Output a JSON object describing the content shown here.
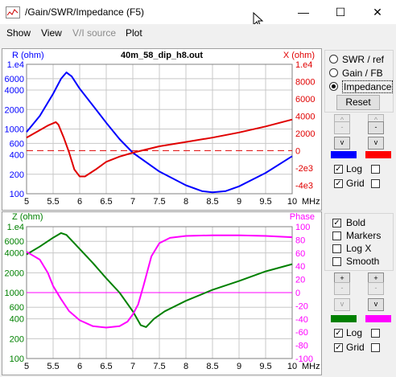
{
  "window": {
    "title": "/Gain/SWR/Impedance (F5)",
    "minimize": "—",
    "maximize": "☐",
    "close": "✕"
  },
  "menu": {
    "show": "Show",
    "view": "View",
    "vi_source": "V/I source",
    "plot": "Plot"
  },
  "top_plot": {
    "title": "40m_58_dip_h8.out",
    "left_axis_label": "R (ohm)",
    "right_axis_label": "X (ohm)",
    "left_ticks": [
      "1.e4",
      "6000",
      "4000",
      "2000",
      "1000",
      "600",
      "400",
      "200",
      "100"
    ],
    "right_ticks": [
      "1.e4",
      "8000",
      "6000",
      "4000",
      "2000",
      "0",
      "-2e3",
      "-4e3"
    ],
    "x_ticks": [
      "5",
      "5.5",
      "6",
      "6.5",
      "7",
      "7.5",
      "8",
      "8.5",
      "9",
      "9.5",
      "10",
      "MHz"
    ],
    "colors": {
      "left": "#0000ff",
      "right": "#e00000",
      "grid": "#c8c8c8"
    }
  },
  "bottom_plot": {
    "left_axis_label": "Z (ohm)",
    "right_axis_label": "Phase",
    "left_ticks": [
      "1.e4",
      "6000",
      "4000",
      "2000",
      "1000",
      "600",
      "400",
      "200",
      "100"
    ],
    "right_ticks": [
      "100",
      "80",
      "60",
      "40",
      "20",
      "0",
      "-20",
      "-40",
      "-60",
      "-80",
      "-100"
    ],
    "x_ticks": [
      "5",
      "5.5",
      "6",
      "6.5",
      "7",
      "7.5",
      "8",
      "8.5",
      "9",
      "9.5",
      "10",
      "MHz"
    ],
    "colors": {
      "left": "#008000",
      "right": "#ff00ff",
      "grid": "#c8c8c8"
    }
  },
  "chart_data": [
    {
      "type": "line",
      "title": "40m_58_dip_h8.out",
      "xlabel": "MHz",
      "x_range": [
        5,
        10
      ],
      "series": [
        {
          "name": "R (ohm)",
          "axis": "left-log",
          "color": "#0000ff",
          "x": [
            5,
            5.25,
            5.5,
            5.65,
            5.75,
            5.85,
            6,
            6.25,
            6.5,
            6.75,
            7,
            7.5,
            8,
            8.3,
            8.5,
            8.75,
            9,
            9.5,
            10
          ],
          "y": [
            900,
            1600,
            3500,
            6000,
            7500,
            6500,
            4200,
            2300,
            1250,
            700,
            430,
            220,
            135,
            110,
            105,
            110,
            130,
            210,
            380
          ]
        },
        {
          "name": "X (ohm)",
          "axis": "right",
          "color": "#e00000",
          "x": [
            5,
            5.2,
            5.4,
            5.55,
            5.6,
            5.7,
            5.8,
            5.9,
            6,
            6.1,
            6.3,
            6.5,
            6.75,
            7,
            7.5,
            8,
            8.5,
            9,
            9.5,
            10
          ],
          "y": [
            1500,
            2200,
            2900,
            3300,
            3000,
            1500,
            -200,
            -2200,
            -3000,
            -3000,
            -2200,
            -1300,
            -700,
            -250,
            500,
            1000,
            1500,
            2100,
            2800,
            3600
          ]
        }
      ],
      "right_dashed_zero": true,
      "ylim_left": [
        100,
        10000
      ],
      "ylim_right": [
        -5000,
        10000
      ]
    },
    {
      "type": "line",
      "xlabel": "MHz",
      "x_range": [
        5,
        10
      ],
      "series": [
        {
          "name": "Z (ohm)",
          "axis": "left-log",
          "color": "#008000",
          "x": [
            5,
            5.25,
            5.5,
            5.65,
            5.75,
            6,
            6.25,
            6.5,
            6.75,
            7,
            7.15,
            7.25,
            7.4,
            7.6,
            8,
            8.5,
            9,
            9.5,
            10
          ],
          "y": [
            3800,
            5000,
            6800,
            8000,
            7500,
            4600,
            2800,
            1650,
            1000,
            520,
            320,
            300,
            400,
            520,
            750,
            1100,
            1500,
            2100,
            2700
          ]
        },
        {
          "name": "Phase",
          "axis": "right",
          "color": "#ff00ff",
          "x": [
            5,
            5.25,
            5.4,
            5.5,
            5.65,
            5.8,
            6,
            6.25,
            6.5,
            6.75,
            6.9,
            7,
            7.1,
            7.2,
            7.35,
            7.5,
            7.7,
            8,
            8.5,
            9,
            9.5,
            10
          ],
          "y": [
            62,
            50,
            30,
            10,
            -10,
            -28,
            -42,
            -51,
            -53,
            -51,
            -44,
            -33,
            -18,
            10,
            55,
            75,
            83,
            86,
            87,
            87,
            86,
            84
          ]
        }
      ],
      "right_dashed_zero": true,
      "ylim_left": [
        100,
        10000
      ],
      "ylim_right": [
        -100,
        100
      ]
    }
  ],
  "side_top": {
    "radio_swr": "SWR / ref",
    "radio_gain": "Gain / FB",
    "radio_impedance": "Impedance",
    "reset": "Reset",
    "up_glyph": "^",
    "down_glyph": "v",
    "minus_glyph": "-",
    "color_left": "#0000ff",
    "color_right": "#ff0000",
    "log_label": "Log",
    "grid_label": "Grid"
  },
  "side_bottom": {
    "bold_label": "Bold",
    "markers_label": "Markers",
    "logx_label": "Log X",
    "smooth_label": "Smooth",
    "plus_glyph": "+",
    "minus_glyph": "-",
    "down_glyph": "v",
    "color_left": "#008000",
    "color_right": "#ff00ff",
    "log_label": "Log",
    "grid_label": "Grid"
  }
}
